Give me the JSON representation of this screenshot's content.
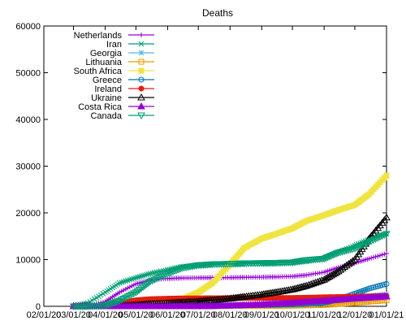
{
  "chart_data": {
    "type": "line",
    "title": "Deaths",
    "xlabel": "",
    "ylabel": "",
    "x_range": [
      "2020-02-01",
      "2021-01-01"
    ],
    "ylim": [
      0,
      60000
    ],
    "grid": false,
    "legend_position": "top-left",
    "x_ticks": [
      "02/01/20",
      "03/01/20",
      "04/01/20",
      "05/01/20",
      "06/01/20",
      "07/01/20",
      "08/01/20",
      "09/01/20",
      "10/01/20",
      "11/01/20",
      "12/01/20",
      "01/01/21"
    ],
    "x_tick_labels": [
      "02/01/20",
      "03/01/20",
      "04/01/20",
      "05/01/20",
      "06/01/20",
      "07/01/20",
      "08/01/20",
      "09/01/20",
      "10/01/20",
      "11/01/20",
      "12/01/20",
      "01/01/21"
    ],
    "y_ticks": [
      0,
      10000,
      20000,
      30000,
      40000,
      50000,
      60000
    ],
    "y_tick_labels": [
      "0",
      "10000",
      "20000",
      "30000",
      "40000",
      "50000",
      "60000"
    ],
    "x": [
      "2020-03-01",
      "2020-03-15",
      "2020-04-01",
      "2020-04-15",
      "2020-05-01",
      "2020-05-15",
      "2020-06-01",
      "2020-06-15",
      "2020-07-01",
      "2020-07-15",
      "2020-08-01",
      "2020-08-15",
      "2020-09-01",
      "2020-09-15",
      "2020-10-01",
      "2020-10-15",
      "2020-11-01",
      "2020-11-15",
      "2020-12-01",
      "2020-12-15",
      "2021-01-01"
    ],
    "series": [
      {
        "name": "Netherlands",
        "color": "#9400d3",
        "marker": "plus",
        "values": [
          0,
          10,
          1000,
          3000,
          4800,
          5600,
          5950,
          6050,
          6100,
          6130,
          6150,
          6200,
          6250,
          6300,
          6400,
          6700,
          7300,
          8300,
          9300,
          10200,
          11300
        ]
      },
      {
        "name": "Iran",
        "color": "#009e73",
        "marker": "x",
        "values": [
          50,
          700,
          3000,
          5000,
          6100,
          7000,
          7800,
          8500,
          8800,
          8900,
          9000,
          9100,
          9200,
          9300,
          9400,
          9600,
          10200,
          11500,
          13000,
          14300,
          15500
        ]
      },
      {
        "name": "Georgia",
        "color": "#56b4e9",
        "marker": "star",
        "values": [
          0,
          0,
          2,
          4,
          10,
          13,
          14,
          15,
          15,
          16,
          17,
          17,
          19,
          30,
          90,
          220,
          550,
          1000,
          1700,
          2200,
          2600
        ]
      },
      {
        "name": "Lithuania",
        "color": "#e69f00",
        "marker": "square",
        "values": [
          0,
          0,
          10,
          30,
          50,
          60,
          70,
          75,
          78,
          80,
          81,
          85,
          90,
          110,
          140,
          210,
          300,
          500,
          750,
          1000,
          1300
        ]
      },
      {
        "name": "South Africa",
        "color": "#f0e442",
        "marker": "filled-square",
        "values": [
          0,
          0,
          5,
          30,
          100,
          300,
          700,
          1500,
          3000,
          5000,
          9000,
          12500,
          14500,
          15500,
          16700,
          18300,
          19500,
          20600,
          21700,
          24000,
          28000
        ]
      },
      {
        "name": "Greece",
        "color": "#0072b2",
        "marker": "circle",
        "values": [
          0,
          4,
          60,
          110,
          140,
          160,
          180,
          185,
          190,
          195,
          205,
          230,
          270,
          340,
          420,
          550,
          750,
          1500,
          2700,
          3800,
          4800
        ]
      },
      {
        "name": "Ireland",
        "color": "#e51e10",
        "marker": "filled-circle",
        "values": [
          0,
          2,
          200,
          700,
          1300,
          1550,
          1650,
          1700,
          1720,
          1740,
          1760,
          1780,
          1790,
          1800,
          1810,
          1850,
          1950,
          2000,
          2070,
          2150,
          2250
        ]
      },
      {
        "name": "Ukraine",
        "color": "#000000",
        "marker": "triangle",
        "values": [
          0,
          0,
          30,
          120,
          250,
          500,
          650,
          850,
          1050,
          1300,
          1650,
          2050,
          2500,
          3000,
          3600,
          4400,
          5700,
          7500,
          10000,
          14500,
          19000
        ]
      },
      {
        "name": "Costa Rica",
        "color": "#9400d3",
        "marker": "filled-triangle",
        "values": [
          0,
          0,
          2,
          5,
          6,
          7,
          10,
          12,
          20,
          50,
          150,
          250,
          400,
          550,
          750,
          950,
          1150,
          1400,
          1650,
          1850,
          2100
        ]
      },
      {
        "name": "Canada",
        "color": "#009e73",
        "marker": "inverted-triangle",
        "values": [
          0,
          4,
          150,
          1200,
          3000,
          5300,
          7000,
          8200,
          8800,
          9000,
          9100,
          9200,
          9250,
          9300,
          9400,
          9900,
          10200,
          11500,
          12400,
          13800,
          15500
        ]
      }
    ],
    "extra_series_note_removed": true
  }
}
